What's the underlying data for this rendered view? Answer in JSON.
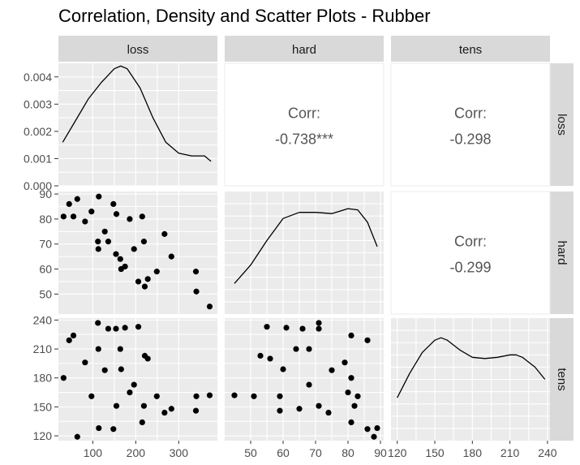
{
  "chart_data": {
    "type": "scatter",
    "title": "Correlation, Density and Scatter Plots - Rubber",
    "variables": [
      "loss",
      "hard",
      "tens"
    ],
    "corr_label": "Corr:",
    "correlations": [
      {
        "row": "loss",
        "col": "hard",
        "value": "-0.738***"
      },
      {
        "row": "loss",
        "col": "tens",
        "value": "-0.298"
      },
      {
        "row": "hard",
        "col": "tens",
        "value": "-0.299"
      }
    ],
    "axes": {
      "loss": {
        "range": [
          20,
          390
        ],
        "ticks": [
          100,
          200,
          300
        ],
        "tick_labels": [
          "100",
          "200",
          "300"
        ]
      },
      "hard": {
        "range": [
          42,
          91
        ],
        "ticks": [
          50,
          60,
          70,
          80,
          90
        ],
        "tick_labels": [
          "50",
          "60",
          "70",
          "80",
          "90"
        ]
      },
      "tens": {
        "range": [
          115,
          242
        ],
        "ticks": [
          120,
          150,
          180,
          210,
          240
        ],
        "tick_labels": [
          "120",
          "150",
          "180",
          "210",
          "240"
        ]
      },
      "density_y": {
        "range": [
          0,
          0.0045
        ],
        "ticks": [
          0,
          0.001,
          0.002,
          0.003,
          0.004
        ],
        "tick_labels": [
          "0.000",
          "0.001",
          "0.002",
          "0.003",
          "0.004"
        ]
      }
    },
    "density": {
      "loss": {
        "x": [
          30,
          60,
          90,
          120,
          150,
          165,
          180,
          210,
          240,
          270,
          300,
          330,
          360,
          375
        ],
        "y": [
          0.0016,
          0.0024,
          0.0032,
          0.0038,
          0.0043,
          0.0044,
          0.0043,
          0.0036,
          0.0025,
          0.0016,
          0.0012,
          0.0011,
          0.0011,
          0.0009
        ]
      },
      "hard": {
        "x": [
          45,
          50,
          55,
          60,
          65,
          70,
          75,
          80,
          83,
          86,
          89
        ],
        "y": [
          0.25,
          0.4,
          0.6,
          0.78,
          0.83,
          0.83,
          0.82,
          0.86,
          0.85,
          0.75,
          0.55
        ]
      },
      "tens": {
        "x": [
          120,
          130,
          140,
          150,
          155,
          160,
          170,
          180,
          190,
          200,
          210,
          215,
          220,
          230,
          238
        ],
        "y": [
          0.35,
          0.55,
          0.72,
          0.82,
          0.84,
          0.82,
          0.74,
          0.68,
          0.67,
          0.68,
          0.7,
          0.7,
          0.68,
          0.6,
          0.5
        ]
      }
    },
    "points": [
      {
        "loss": 372,
        "hard": 45,
        "tens": 162
      },
      {
        "loss": 206,
        "hard": 55,
        "tens": 233
      },
      {
        "loss": 175,
        "hard": 61,
        "tens": 232
      },
      {
        "loss": 154,
        "hard": 66,
        "tens": 231
      },
      {
        "loss": 136,
        "hard": 71,
        "tens": 231
      },
      {
        "loss": 112,
        "hard": 71,
        "tens": 237
      },
      {
        "loss": 55,
        "hard": 81,
        "tens": 224
      },
      {
        "loss": 45,
        "hard": 86,
        "tens": 219
      },
      {
        "loss": 221,
        "hard": 53,
        "tens": 203
      },
      {
        "loss": 166,
        "hard": 60,
        "tens": 189
      },
      {
        "loss": 164,
        "hard": 64,
        "tens": 210
      },
      {
        "loss": 113,
        "hard": 68,
        "tens": 210
      },
      {
        "loss": 82,
        "hard": 79,
        "tens": 196
      },
      {
        "loss": 32,
        "hard": 81,
        "tens": 180
      },
      {
        "loss": 228,
        "hard": 56,
        "tens": 200
      },
      {
        "loss": 196,
        "hard": 68,
        "tens": 173
      },
      {
        "loss": 128,
        "hard": 75,
        "tens": 188
      },
      {
        "loss": 97,
        "hard": 83,
        "tens": 161
      },
      {
        "loss": 64,
        "hard": 88,
        "tens": 119
      },
      {
        "loss": 249,
        "hard": 59,
        "tens": 161
      },
      {
        "loss": 219,
        "hard": 71,
        "tens": 151
      },
      {
        "loss": 186,
        "hard": 80,
        "tens": 165
      },
      {
        "loss": 155,
        "hard": 82,
        "tens": 151
      },
      {
        "loss": 114,
        "hard": 89,
        "tens": 128
      },
      {
        "loss": 341,
        "hard": 51,
        "tens": 161
      },
      {
        "loss": 340,
        "hard": 59,
        "tens": 146
      },
      {
        "loss": 283,
        "hard": 65,
        "tens": 148
      },
      {
        "loss": 267,
        "hard": 74,
        "tens": 144
      },
      {
        "loss": 215,
        "hard": 81,
        "tens": 134
      },
      {
        "loss": 148,
        "hard": 86,
        "tens": 127
      }
    ]
  }
}
